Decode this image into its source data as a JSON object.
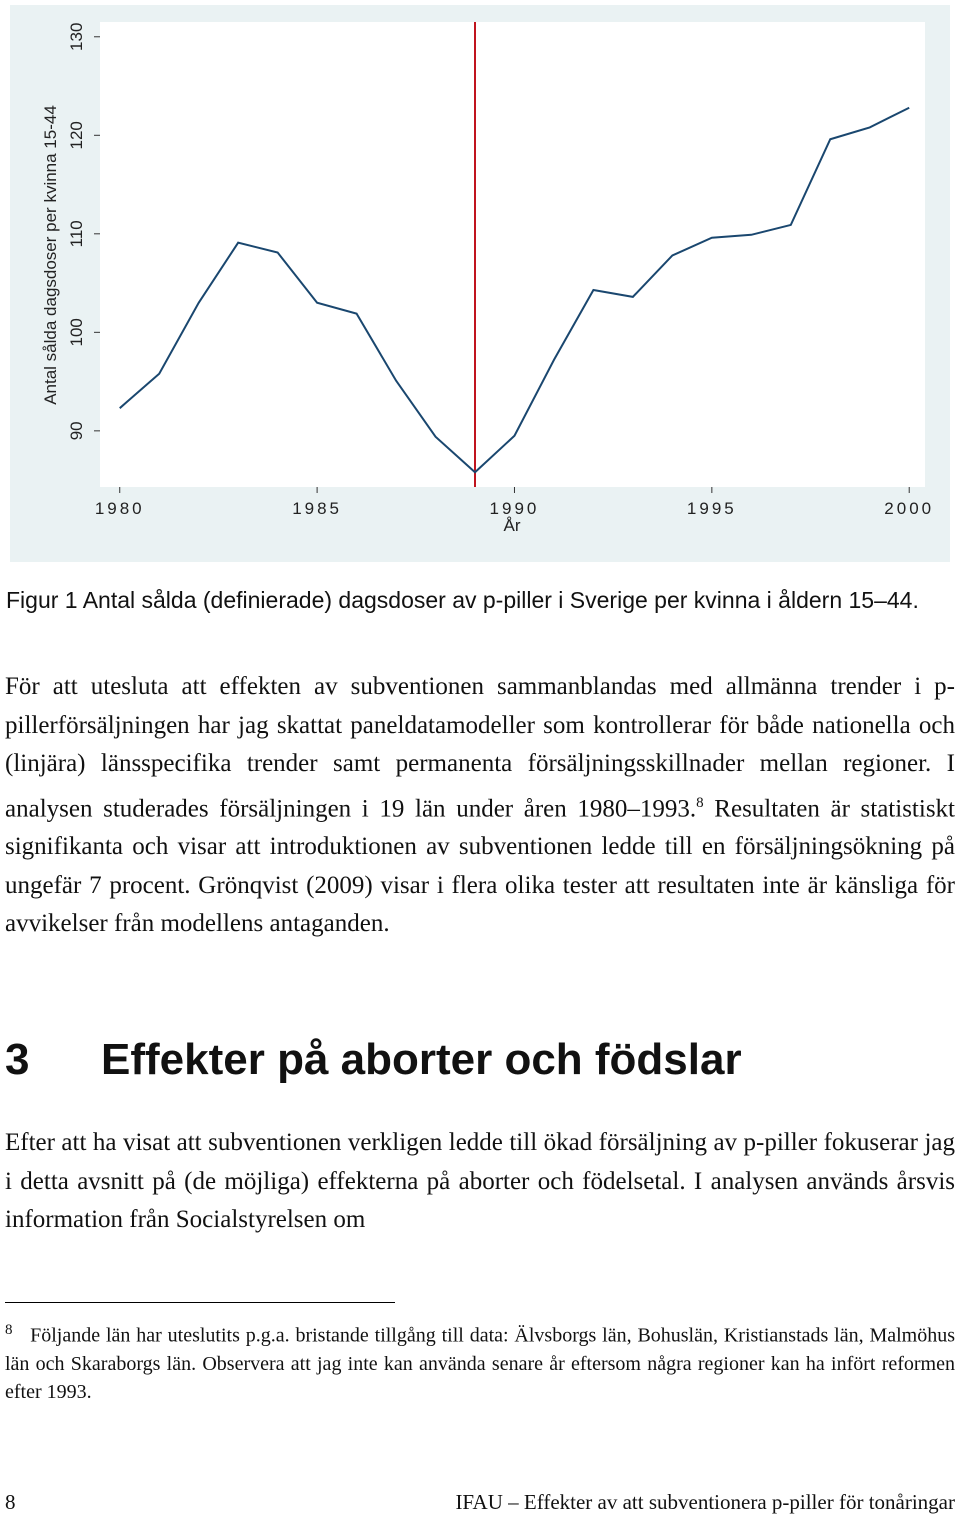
{
  "chart_data": {
    "type": "line",
    "x": [
      1980,
      1981,
      1982,
      1983,
      1984,
      1985,
      1986,
      1987,
      1988,
      1989,
      1990,
      1991,
      1992,
      1993,
      1994,
      1995,
      1996,
      1997,
      1998,
      1999,
      2000
    ],
    "values": [
      92.3,
      95.8,
      103.0,
      109.1,
      108.1,
      103.0,
      101.9,
      95.1,
      89.4,
      85.8,
      89.5,
      97.2,
      104.3,
      103.6,
      107.8,
      109.6,
      109.9,
      110.9,
      119.6,
      120.8,
      122.8
    ],
    "color": "#1a476f",
    "xlim": [
      1979.5,
      2000.4
    ],
    "xticks": [
      1980,
      1985,
      1990,
      1995,
      2000
    ],
    "ylim": [
      84.3,
      131.5
    ],
    "yticks": [
      90,
      100,
      110,
      120,
      130
    ],
    "xlabel": "År",
    "ylabel": "Antal sålda dagsdoser per kvinna 15-44",
    "reference_line": {
      "x": 1989,
      "color": "#c0141e"
    }
  },
  "caption": "Figur 1 Antal sålda (definierade) dagsdoser av p-piller i Sverige per kvinna i åldern 15–44.",
  "paragraph1": {
    "before": "För att utesluta att effekten av subventionen sammanblandas med allmänna trender i p-pillerförsäljningen har jag skattat paneldatamodeller som kontrol­lerar för både nationella och (linjära) länsspecifika trender samt permanenta försäljningsskillnader mellan regioner. I analysen studerades försäljningen i 19 län under åren 1980–1993.",
    "footnote_ref": "8",
    "after": " Resultaten är statistiskt signifikanta och visar att introduktionen av subventionen ledde till en försäljningsökning på ungefär 7 procent. Grönqvist (2009) visar i flera olika tester att resultaten inte är känsliga för avvikelser från modellens antaganden."
  },
  "heading": {
    "number": "3",
    "title": "Effekter på aborter och födslar"
  },
  "paragraph2": "Efter att ha visat att subventionen verkligen ledde till ökad försäljning av p-piller fokuserar jag i detta avsnitt på (de möjliga) effekterna på aborter och födelsetal. I analysen används årsvis information från Socialstyrelsen om",
  "footnote": {
    "number": "8",
    "text": "Följande län har uteslutits p.g.a. bristande tillgång till data: Älvsborgs län, Bohuslän, Kristianstads län, Malmöhus län och Skaraborgs län. Observera att jag inte kan använda senare år eftersom några regioner kan ha infört reformen efter 1993."
  },
  "footer": {
    "page": "8",
    "text": "IFAU – Effekter av att subventionera p-piller för tonåringar"
  }
}
